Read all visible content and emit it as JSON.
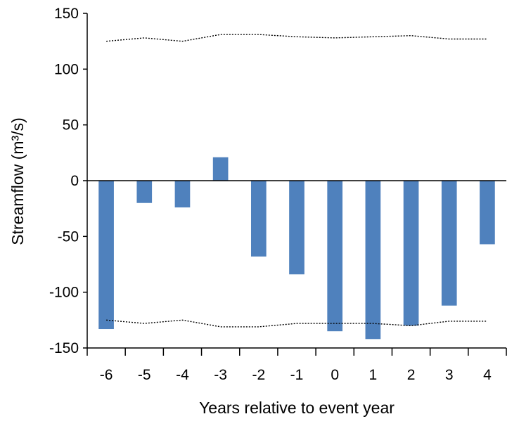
{
  "chart_data": {
    "type": "bar",
    "xlabel": "Years relative to event year",
    "ylabel": "Streamflow (m³/s)",
    "ylim": [
      -150,
      150
    ],
    "yticks": [
      150,
      100,
      50,
      0,
      -50,
      -100,
      -150
    ],
    "grid": false,
    "legend": "none",
    "categories": [
      "-6",
      "-5",
      "-4",
      "-3",
      "-2",
      "-1",
      "0",
      "1",
      "2",
      "3",
      "4"
    ],
    "values": [
      -133,
      -20,
      -24,
      21,
      -68,
      -84,
      -135,
      -142,
      -130,
      -112,
      -57
    ],
    "bar_color": "#4f81bd",
    "bounds": {
      "upper": [
        125,
        128,
        125,
        131,
        131,
        129,
        128,
        129,
        130,
        127,
        127
      ],
      "lower": [
        -125,
        -128,
        -125,
        -131,
        -131,
        -128,
        -128,
        -128,
        -130,
        -126,
        -126
      ],
      "style": "dotted",
      "color": "#000000"
    }
  }
}
